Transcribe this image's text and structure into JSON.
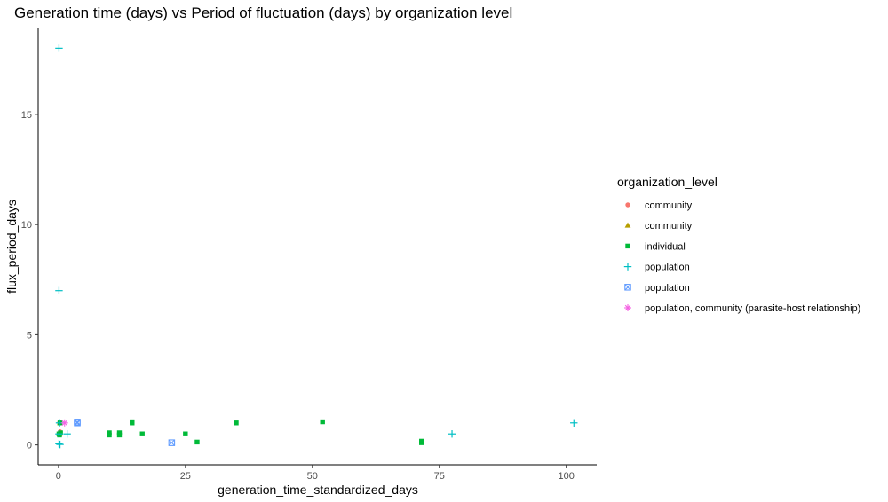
{
  "chart_data": {
    "type": "scatter",
    "title": "Generation time (days) vs Period of fluctuation (days) by organization level",
    "xlabel": "generation_time_standardized_days",
    "ylabel": "flux_period_days",
    "xlim": [
      -4,
      106
    ],
    "ylim": [
      -0.9,
      18.9
    ],
    "x_ticks": [
      0,
      25,
      50,
      75,
      100
    ],
    "y_ticks": [
      0,
      5,
      10,
      15
    ],
    "grid": false,
    "legend": {
      "title": "organization_level",
      "placement": "right"
    },
    "series": [
      {
        "name": "community",
        "color": "#F8766D",
        "marker": "circle",
        "points": [
          [
            0.1,
            0.5
          ],
          [
            0.2,
            1.0
          ],
          [
            0.3,
            0.6
          ]
        ]
      },
      {
        "name": "community",
        "color": "#B79F00",
        "marker": "triangle",
        "points": [
          [
            0.2,
            0.5
          ],
          [
            0.3,
            1.0
          ]
        ]
      },
      {
        "name": "individual",
        "color": "#00BA38",
        "marker": "square",
        "points": [
          [
            0.1,
            0.5
          ],
          [
            0.2,
            0.45
          ],
          [
            0.3,
            1.0
          ],
          [
            0.4,
            0.55
          ],
          [
            10,
            0.45
          ],
          [
            10,
            0.55
          ],
          [
            12,
            0.45
          ],
          [
            12,
            0.55
          ],
          [
            14.5,
            1.0
          ],
          [
            14.5,
            1.05
          ],
          [
            16.5,
            0.5
          ],
          [
            25,
            0.5
          ],
          [
            27.3,
            0.13
          ],
          [
            35,
            1.0
          ],
          [
            52,
            1.05
          ],
          [
            71.5,
            0.1
          ],
          [
            71.5,
            0.17
          ]
        ]
      },
      {
        "name": "population",
        "color": "#00BFC4",
        "marker": "plus",
        "points": [
          [
            0.1,
            18.0
          ],
          [
            0.1,
            7.0
          ],
          [
            0.1,
            0.5
          ],
          [
            0.2,
            1.0
          ],
          [
            0.1,
            0.05
          ],
          [
            0.3,
            0.02
          ],
          [
            1.7,
            0.5
          ],
          [
            77.5,
            0.5
          ],
          [
            101.5,
            1.0
          ]
        ]
      },
      {
        "name": "population",
        "color": "#619CFF",
        "marker": "square-cross",
        "points": [
          [
            3.7,
            1.0
          ],
          [
            3.7,
            1.04
          ],
          [
            22.3,
            0.1
          ]
        ]
      },
      {
        "name": "population, community (parasite-host relationship)",
        "color": "#F564E3",
        "marker": "asterisk",
        "points": [
          [
            1.2,
            1.0
          ]
        ]
      }
    ]
  }
}
